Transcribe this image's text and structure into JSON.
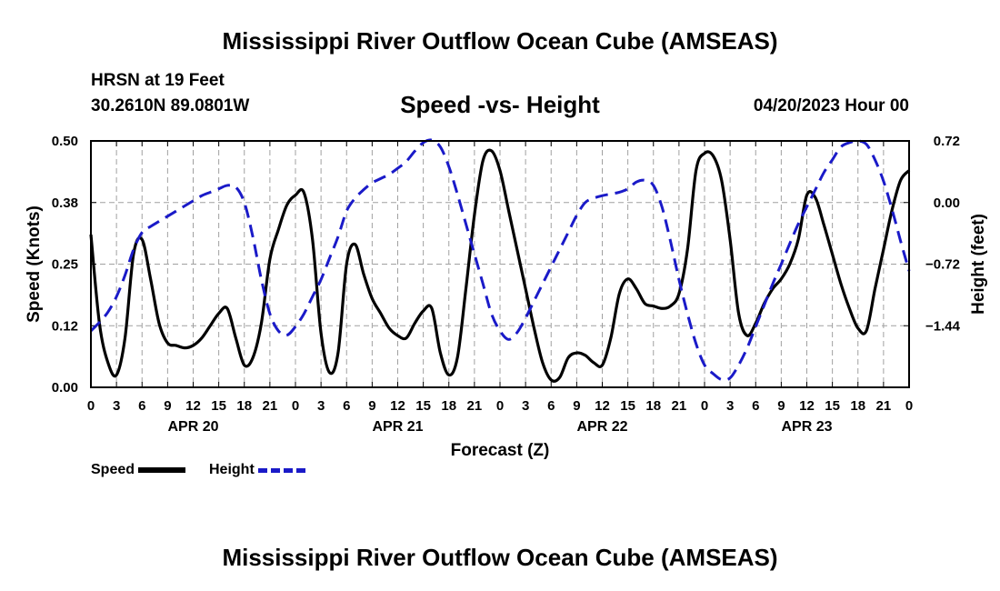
{
  "header": {
    "title": "Mississippi River Outflow Ocean Cube (AMSEAS)",
    "station": "HRSN at 19 Feet",
    "coords": "30.2610N  89.0801W",
    "subtitle": "Speed -vs- Height",
    "datehour": "04/20/2023 Hour 00"
  },
  "footer": {
    "title": "Mississippi River Outflow Ocean Cube (AMSEAS)"
  },
  "legend": {
    "speed": "Speed",
    "height": "Height"
  },
  "colors": {
    "speed": "#000000",
    "height": "#1a1ac8",
    "grid": "#a0a0a0"
  },
  "chart_data": {
    "type": "line",
    "title": "Speed -vs- Height",
    "xlabel": "Forecast (Z)",
    "ylabel": "Speed (Knots)",
    "y2label": "Height (feet)",
    "xlim": [
      0,
      96
    ],
    "ylim": [
      0,
      0.5
    ],
    "y2lim": [
      -2.16,
      0.72
    ],
    "xticks": [
      0,
      3,
      6,
      9,
      12,
      15,
      18,
      21,
      24,
      27,
      30,
      33,
      36,
      39,
      42,
      45,
      48,
      51,
      54,
      57,
      60,
      63,
      66,
      69,
      72,
      75,
      78,
      81,
      84,
      87,
      90,
      93,
      96
    ],
    "xtick_labels": [
      "0",
      "3",
      "6",
      "9",
      "12",
      "15",
      "18",
      "21",
      "0",
      "3",
      "6",
      "9",
      "12",
      "15",
      "18",
      "21",
      "0",
      "3",
      "6",
      "9",
      "12",
      "15",
      "18",
      "21",
      "0",
      "3",
      "6",
      "9",
      "12",
      "15",
      "18",
      "21",
      "0"
    ],
    "day_labels": [
      {
        "x": 12,
        "label": "APR 20"
      },
      {
        "x": 36,
        "label": "APR 21"
      },
      {
        "x": 60,
        "label": "APR 22"
      },
      {
        "x": 84,
        "label": "APR 23"
      }
    ],
    "yticks": [
      0.0,
      0.125,
      0.25,
      0.375,
      0.5
    ],
    "ytick_labels": [
      "0.00",
      "0.12",
      "0.25",
      "0.38",
      "0.50"
    ],
    "y2ticks": [
      0.72,
      0.0,
      -0.72,
      -1.44
    ],
    "y2tick_labels": [
      "0.72",
      "0.00",
      "−0.72",
      "−1.44"
    ],
    "grid": true,
    "series": [
      {
        "name": "Speed",
        "axis": "left",
        "style": "solid",
        "x": [
          0,
          1,
          2,
          3,
          4,
          5,
          6,
          7,
          8,
          9,
          10,
          11,
          12,
          13,
          14,
          15,
          16,
          17,
          18,
          19,
          20,
          21,
          22,
          23,
          24,
          25,
          26,
          27,
          28,
          29,
          30,
          31,
          32,
          33,
          34,
          35,
          36,
          37,
          38,
          39,
          40,
          41,
          42,
          43,
          44,
          45,
          46,
          47,
          48,
          49,
          50,
          51,
          52,
          53,
          54,
          55,
          56,
          57,
          58,
          59,
          60,
          61,
          62,
          63,
          64,
          65,
          66,
          67,
          68,
          69,
          70,
          71,
          72,
          73,
          74,
          75,
          76,
          77,
          78,
          79,
          80,
          81,
          82,
          83,
          84,
          85,
          86,
          87,
          88,
          89,
          90,
          91,
          92,
          93,
          94,
          95,
          96
        ],
        "values": [
          0.31,
          0.13,
          0.05,
          0.025,
          0.1,
          0.27,
          0.3,
          0.22,
          0.13,
          0.09,
          0.085,
          0.08,
          0.085,
          0.1,
          0.125,
          0.15,
          0.16,
          0.1,
          0.045,
          0.06,
          0.13,
          0.26,
          0.32,
          0.37,
          0.39,
          0.395,
          0.3,
          0.11,
          0.03,
          0.07,
          0.25,
          0.29,
          0.23,
          0.18,
          0.15,
          0.12,
          0.105,
          0.1,
          0.13,
          0.155,
          0.16,
          0.07,
          0.025,
          0.06,
          0.2,
          0.35,
          0.46,
          0.48,
          0.44,
          0.36,
          0.28,
          0.2,
          0.12,
          0.05,
          0.015,
          0.02,
          0.06,
          0.07,
          0.065,
          0.05,
          0.045,
          0.1,
          0.19,
          0.22,
          0.2,
          0.17,
          0.165,
          0.16,
          0.165,
          0.19,
          0.28,
          0.44,
          0.475,
          0.47,
          0.42,
          0.3,
          0.15,
          0.105,
          0.13,
          0.17,
          0.2,
          0.22,
          0.25,
          0.3,
          0.39,
          0.385,
          0.33,
          0.27,
          0.21,
          0.16,
          0.12,
          0.115,
          0.2,
          0.28,
          0.36,
          0.42,
          0.44
        ]
      },
      {
        "name": "Height",
        "axis": "right",
        "style": "dashed",
        "x": [
          0,
          1,
          2,
          3,
          4,
          5,
          6,
          7,
          8,
          9,
          10,
          11,
          12,
          13,
          14,
          15,
          16,
          17,
          18,
          19,
          20,
          21,
          22,
          23,
          24,
          25,
          26,
          27,
          28,
          29,
          30,
          31,
          32,
          33,
          34,
          35,
          36,
          37,
          38,
          39,
          40,
          41,
          42,
          43,
          44,
          45,
          46,
          47,
          48,
          49,
          50,
          51,
          52,
          53,
          54,
          55,
          56,
          57,
          58,
          59,
          60,
          61,
          62,
          63,
          64,
          65,
          66,
          67,
          68,
          69,
          70,
          71,
          72,
          73,
          74,
          75,
          76,
          77,
          78,
          79,
          80,
          81,
          82,
          83,
          84,
          85,
          86,
          87,
          88,
          89,
          90,
          91,
          92,
          93,
          94,
          95,
          96
        ],
        "values": [
          -1.5,
          -1.4,
          -1.28,
          -1.1,
          -0.85,
          -0.55,
          -0.35,
          -0.28,
          -0.22,
          -0.16,
          -0.1,
          -0.04,
          0.02,
          0.08,
          0.12,
          0.16,
          0.2,
          0.18,
          0.0,
          -0.4,
          -0.9,
          -1.3,
          -1.5,
          -1.55,
          -1.45,
          -1.3,
          -1.1,
          -0.9,
          -0.65,
          -0.4,
          -0.1,
          0.05,
          0.15,
          0.23,
          0.28,
          0.33,
          0.4,
          0.48,
          0.6,
          0.7,
          0.73,
          0.65,
          0.42,
          0.1,
          -0.25,
          -0.6,
          -0.95,
          -1.3,
          -1.5,
          -1.6,
          -1.52,
          -1.35,
          -1.15,
          -0.95,
          -0.75,
          -0.55,
          -0.35,
          -0.15,
          0.0,
          0.05,
          0.08,
          0.1,
          0.12,
          0.16,
          0.24,
          0.26,
          0.2,
          -0.05,
          -0.45,
          -0.9,
          -1.3,
          -1.65,
          -1.9,
          -2.0,
          -2.07,
          -2.05,
          -1.9,
          -1.7,
          -1.45,
          -1.2,
          -0.95,
          -0.72,
          -0.48,
          -0.25,
          -0.05,
          0.15,
          0.35,
          0.5,
          0.65,
          0.7,
          0.72,
          0.68,
          0.5,
          0.25,
          -0.08,
          -0.45,
          -0.8
        ]
      }
    ]
  }
}
